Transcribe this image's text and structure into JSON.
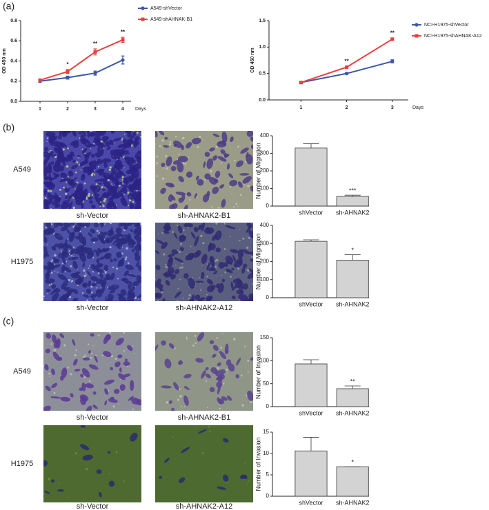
{
  "panels": [
    "(a)",
    "(b)",
    "(c)"
  ],
  "image_rows": [
    {
      "label": "A549",
      "captions": [
        "sh-Vector",
        "sh-AHNAK2-B1"
      ]
    },
    {
      "label": "H1975",
      "captions": [
        "sh-Vector",
        "sh-AHNAK2-A12"
      ]
    },
    {
      "label": "A549",
      "captions": [
        "sh-Vector",
        "sh-AHNAK2-B1"
      ]
    },
    {
      "label": "H1975",
      "captions": [
        "sh-Vector",
        "sh-AHNAK2-A12"
      ]
    }
  ],
  "chart_data": [
    {
      "type": "line",
      "xlabel": "Days",
      "ylabel": "OD 450 nm",
      "x": [
        1,
        2,
        3,
        4
      ],
      "xlim": [
        0.3,
        4.3
      ],
      "xticks": [
        1,
        2,
        3,
        4
      ],
      "ylim": [
        0,
        0.8
      ],
      "yticks": [
        {
          "value": 0,
          "label": "0.0"
        },
        0.2,
        0.4,
        0.6,
        0.8
      ],
      "series": [
        {
          "name": "A549-shVector",
          "color": "#3a57a8",
          "marker": "circle",
          "values": [
            0.2,
            0.235,
            0.28,
            0.41
          ],
          "errors": [
            0.01,
            0.015,
            0.02,
            0.04
          ]
        },
        {
          "name": "A549-shAHNAK-B1",
          "color": "#e8403f",
          "marker": "square",
          "values": [
            0.21,
            0.295,
            0.49,
            0.61
          ],
          "errors": [
            0.01,
            0.02,
            0.03,
            0.025
          ]
        }
      ],
      "annotations": [
        {
          "text": "*",
          "x": 2
        },
        {
          "text": "**",
          "x": 3
        },
        {
          "text": "**",
          "x": 4
        }
      ]
    },
    {
      "type": "line",
      "xlabel": "Days",
      "ylabel": "OD 450 nm",
      "x": [
        1,
        2,
        3
      ],
      "xlim": [
        0.3,
        3.35
      ],
      "xticks": [
        1,
        2,
        3
      ],
      "ylim": [
        0,
        1.5
      ],
      "yticks": [
        {
          "value": 0,
          "label": "0.0"
        },
        0.5,
        {
          "value": 1,
          "label": "1.0"
        },
        1.5
      ],
      "series": [
        {
          "name": "NCI-H1975-shVector",
          "color": "#3a57a8",
          "marker": "circle",
          "values": [
            0.33,
            0.5,
            0.73
          ],
          "errors": [
            0.02,
            0.015,
            0.03
          ]
        },
        {
          "name": "NCI-H1975-shAHNAK-A12",
          "color": "#e8403f",
          "marker": "square",
          "values": [
            0.33,
            0.62,
            1.15
          ],
          "errors": [
            0.02,
            0.015,
            0.02
          ]
        }
      ],
      "annotations": [
        {
          "text": "**",
          "x": 2
        },
        {
          "text": "**",
          "x": 3
        }
      ]
    },
    {
      "type": "bar",
      "ylabel": "Number of Migration",
      "categories": [
        "shVector",
        "sh-AHNAK2"
      ],
      "values": [
        330,
        55
      ],
      "errors": [
        25,
        7
      ],
      "color": "#d3d3d3",
      "ylim": [
        0,
        400
      ],
      "yticks": [
        0,
        100,
        200,
        300,
        400
      ],
      "annotations": [
        {
          "text": "***",
          "category": 1
        }
      ]
    },
    {
      "type": "bar",
      "ylabel": "Number of Migration",
      "categories": [
        "shVector",
        "sh-AHNAK2"
      ],
      "values": [
        312,
        208
      ],
      "errors": [
        8,
        30
      ],
      "color": "#d3d3d3",
      "ylim": [
        0,
        400
      ],
      "yticks": [
        0,
        100,
        200,
        300,
        400
      ],
      "annotations": [
        {
          "text": "*",
          "category": 1
        }
      ]
    },
    {
      "type": "bar",
      "ylabel": "Number of Invasion",
      "categories": [
        "shVector",
        "sh-AHNAK2"
      ],
      "values": [
        93,
        39
      ],
      "errors": [
        9,
        6
      ],
      "color": "#d3d3d3",
      "ylim": [
        0,
        150
      ],
      "yticks": [
        0,
        50,
        100,
        150
      ],
      "annotations": [
        {
          "text": "**",
          "category": 1
        }
      ]
    },
    {
      "type": "bar",
      "ylabel": "Number of Invasion",
      "categories": [
        "shVector",
        "sh-AHNAK2"
      ],
      "values": [
        10.6,
        6.9
      ],
      "errors": [
        3.2,
        0
      ],
      "color": "#d3d3d3",
      "ylim": [
        0,
        15
      ],
      "yticks": [
        0,
        5,
        10,
        15
      ],
      "annotations": [
        {
          "text": "*",
          "category": 1
        }
      ]
    }
  ]
}
